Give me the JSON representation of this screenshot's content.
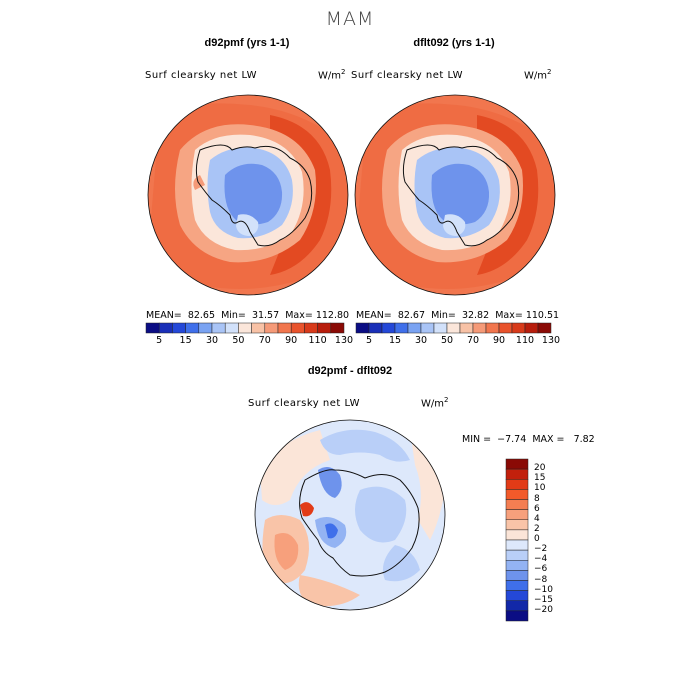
{
  "figure_title": "MAM",
  "panels": [
    {
      "title": "d92pmf (yrs 1-1)",
      "field": "Surf clearsky net LW",
      "units": "W/m",
      "units_sup": "2",
      "mean_label": "MEAN=",
      "mean": "82.65",
      "min_label": "Min=",
      "min": "31.57",
      "max_label": "Max=",
      "max": "112.80"
    },
    {
      "title": "dflt092 (yrs 1-1)",
      "field": "Surf clearsky net LW",
      "units": "W/m",
      "units_sup": "2",
      "mean_label": "MEAN=",
      "mean": "82.67",
      "min_label": "Min=",
      "min": "32.82",
      "max_label": "Max=",
      "max": "110.51"
    },
    {
      "title": "d92pmf - dflt092",
      "field": "Surf clearsky net LW",
      "units": "W/m",
      "units_sup": "2",
      "min_label": "MIN =",
      "min": "−7.74",
      "max_label": "MAX =",
      "max": "7.82"
    }
  ],
  "colorbar_abs": {
    "labels": [
      "5",
      "15",
      "30",
      "50",
      "70",
      "90",
      "110",
      "130"
    ],
    "colors": [
      "#0b0d84",
      "#1a2fb8",
      "#2448d8",
      "#3f6fea",
      "#7aa3f2",
      "#a9c4f6",
      "#d2e1fa",
      "#fbe6da",
      "#f8c2a6",
      "#f59a78",
      "#f1764e",
      "#e9532c",
      "#d83a1a",
      "#b81d0c",
      "#8a0a05"
    ]
  },
  "colorbar_diff": {
    "labels": [
      "20",
      "15",
      "10",
      "8",
      "6",
      "4",
      "2",
      "0",
      "−2",
      "−4",
      "−6",
      "−8",
      "−10",
      "−15",
      "−20"
    ],
    "colors": [
      "#8a0a05",
      "#c2200c",
      "#e23b17",
      "#f25a2a",
      "#f47e52",
      "#f7a07c",
      "#f9c4a8",
      "#fbe5d8",
      "#dde8fb",
      "#b9cff8",
      "#93b3f3",
      "#6e93ec",
      "#3f6fea",
      "#2448d8",
      "#1228a8",
      "#0b0d84"
    ]
  }
}
